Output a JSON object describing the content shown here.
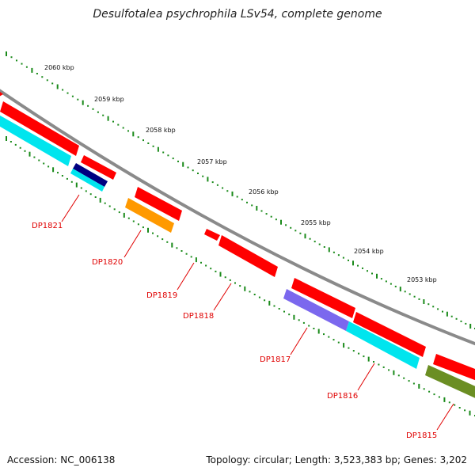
{
  "title": "Desulfotalea psychrophila LSv54, complete genome",
  "footer": {
    "accession": "Accession: NC_006138",
    "stats": "Topology: circular; Length: 3,523,383 bp; Genes: 3,202"
  },
  "colors": {
    "backbone": "#8a8a8a",
    "cds": "#ff0000",
    "tick": "#1a8a1a",
    "label": "#e00000",
    "cyan": "#00e5ee",
    "orange": "#ff9900",
    "navy": "#000080",
    "violet": "#7b68ee",
    "olive": "#6b8e23"
  },
  "ticks": [
    {
      "label": "2060 kbp"
    },
    {
      "label": "2059 kbp"
    },
    {
      "label": "2058 kbp"
    },
    {
      "label": "2057 kbp"
    },
    {
      "label": "2056 kbp"
    },
    {
      "label": "2055 kbp"
    },
    {
      "label": "2054 kbp"
    },
    {
      "label": "2053 kbp"
    }
  ],
  "genes": [
    {
      "label": "DP1821"
    },
    {
      "label": "DP1820"
    },
    {
      "label": "DP1819"
    },
    {
      "label": "DP1818"
    },
    {
      "label": "DP1817"
    },
    {
      "label": "DP1816"
    },
    {
      "label": "DP1815"
    }
  ]
}
